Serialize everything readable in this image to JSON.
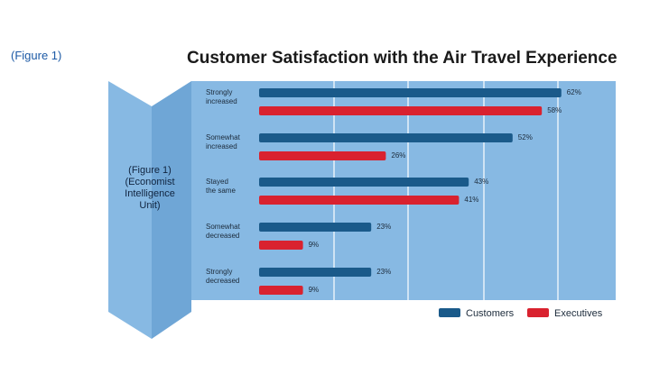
{
  "figure_tag": "(Figure 1)",
  "chart_data": {
    "type": "bar",
    "title": "Customer Satisfaction with the Air Travel Experience",
    "side_label": [
      "(Figure 1)",
      "(Economist",
      "Intelligence",
      "Unit)"
    ],
    "categories": [
      [
        "Strongly",
        "increased"
      ],
      [
        "Somewhat",
        "increased"
      ],
      [
        "Stayed",
        "the same"
      ],
      [
        "Somewhat",
        "decreased"
      ],
      [
        "Strongly",
        "decreased"
      ]
    ],
    "series": [
      {
        "name": "Customers",
        "color": "#1a5a8a",
        "values": [
          62,
          52,
          43,
          23,
          23
        ]
      },
      {
        "name": "Executives",
        "color": "#d9222f",
        "values": [
          58,
          26,
          41,
          9,
          9
        ]
      }
    ],
    "value_labels": [
      [
        "62%",
        "52%",
        "43%",
        "23%",
        "23%"
      ],
      [
        "58%",
        "26%",
        "41%",
        "9%",
        "9%"
      ]
    ],
    "orientation": "horizontal",
    "grid": true,
    "legend_position": "bottom-right",
    "colors": {
      "panel": "#87b9e3",
      "panel_dark": "#6fa6d6",
      "grid": "#ffffff"
    }
  }
}
